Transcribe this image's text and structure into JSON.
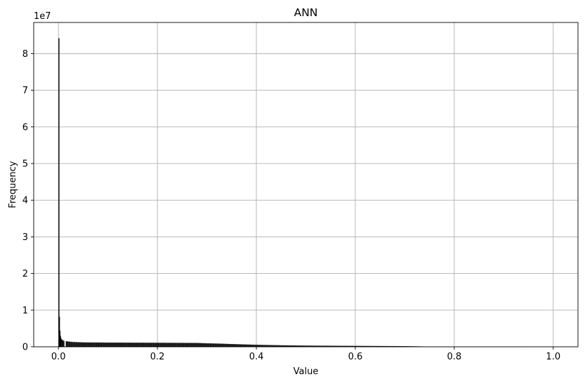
{
  "chart_data": {
    "type": "bar",
    "title": "ANN",
    "xlabel": "Value",
    "ylabel": "Frequency",
    "y_offset_label": "1e7",
    "y_scale": 10000000,
    "xlim": [
      -0.05,
      1.05
    ],
    "ylim": [
      0,
      88500000
    ],
    "x_ticks": [
      0.0,
      0.2,
      0.4,
      0.6,
      0.8,
      1.0
    ],
    "x_tick_labels": [
      "0.0",
      "0.2",
      "0.4",
      "0.6",
      "0.8",
      "1.0"
    ],
    "y_ticks": [
      0,
      10000000,
      20000000,
      30000000,
      40000000,
      50000000,
      60000000,
      70000000,
      80000000
    ],
    "y_tick_labels": [
      "0",
      "1",
      "2",
      "3",
      "4",
      "5",
      "6",
      "7",
      "8"
    ],
    "grid": true,
    "bar_color": "#000000",
    "bin_width": 0.001,
    "spikes": [
      {
        "x": 0.0,
        "value": 84200000
      },
      {
        "x": 0.001,
        "value": 8200000
      },
      {
        "x": 0.002,
        "value": 4400000
      },
      {
        "x": 0.003,
        "value": 3000000
      },
      {
        "x": 0.004,
        "value": 2400000
      },
      {
        "x": 0.006,
        "value": 2000000
      },
      {
        "x": 0.008,
        "value": 1800000
      },
      {
        "x": 0.01,
        "value": 1650000
      },
      {
        "x": 0.015,
        "value": 1500000
      }
    ],
    "profile": [
      {
        "x": 0.015,
        "value": 1500000
      },
      {
        "x": 0.03,
        "value": 1300000
      },
      {
        "x": 0.05,
        "value": 1200000
      },
      {
        "x": 0.1,
        "value": 1150000
      },
      {
        "x": 0.2,
        "value": 1100000
      },
      {
        "x": 0.28,
        "value": 1050000
      },
      {
        "x": 0.3,
        "value": 950000
      },
      {
        "x": 0.33,
        "value": 850000
      },
      {
        "x": 0.35,
        "value": 750000
      },
      {
        "x": 0.4,
        "value": 550000
      },
      {
        "x": 0.45,
        "value": 420000
      },
      {
        "x": 0.5,
        "value": 330000
      },
      {
        "x": 0.6,
        "value": 250000
      },
      {
        "x": 0.7,
        "value": 180000
      },
      {
        "x": 0.73,
        "value": 120000
      },
      {
        "x": 0.75,
        "value": 60000
      },
      {
        "x": 0.8,
        "value": 30000
      },
      {
        "x": 0.9,
        "value": 15000
      },
      {
        "x": 1.0,
        "value": 5000
      }
    ]
  }
}
